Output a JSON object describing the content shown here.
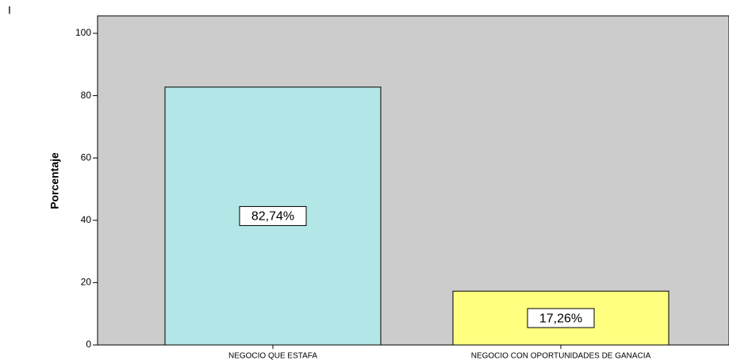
{
  "corner_text": "I",
  "chart_data": {
    "type": "bar",
    "y_label": "Porcentaje",
    "categories": [
      "NEGOCIO QUE ESTAFA",
      "NEGOCIO CON OPORTUNIDADES DE GANACIA"
    ],
    "values": [
      82.74,
      17.26
    ],
    "value_labels": [
      "82,74%",
      "17,26%"
    ],
    "colors": [
      "#b3e6e6",
      "#ffff80"
    ],
    "ylim": [
      0,
      105.6
    ],
    "yticks": [
      0,
      20,
      40,
      60,
      80,
      100
    ],
    "grid": false
  }
}
